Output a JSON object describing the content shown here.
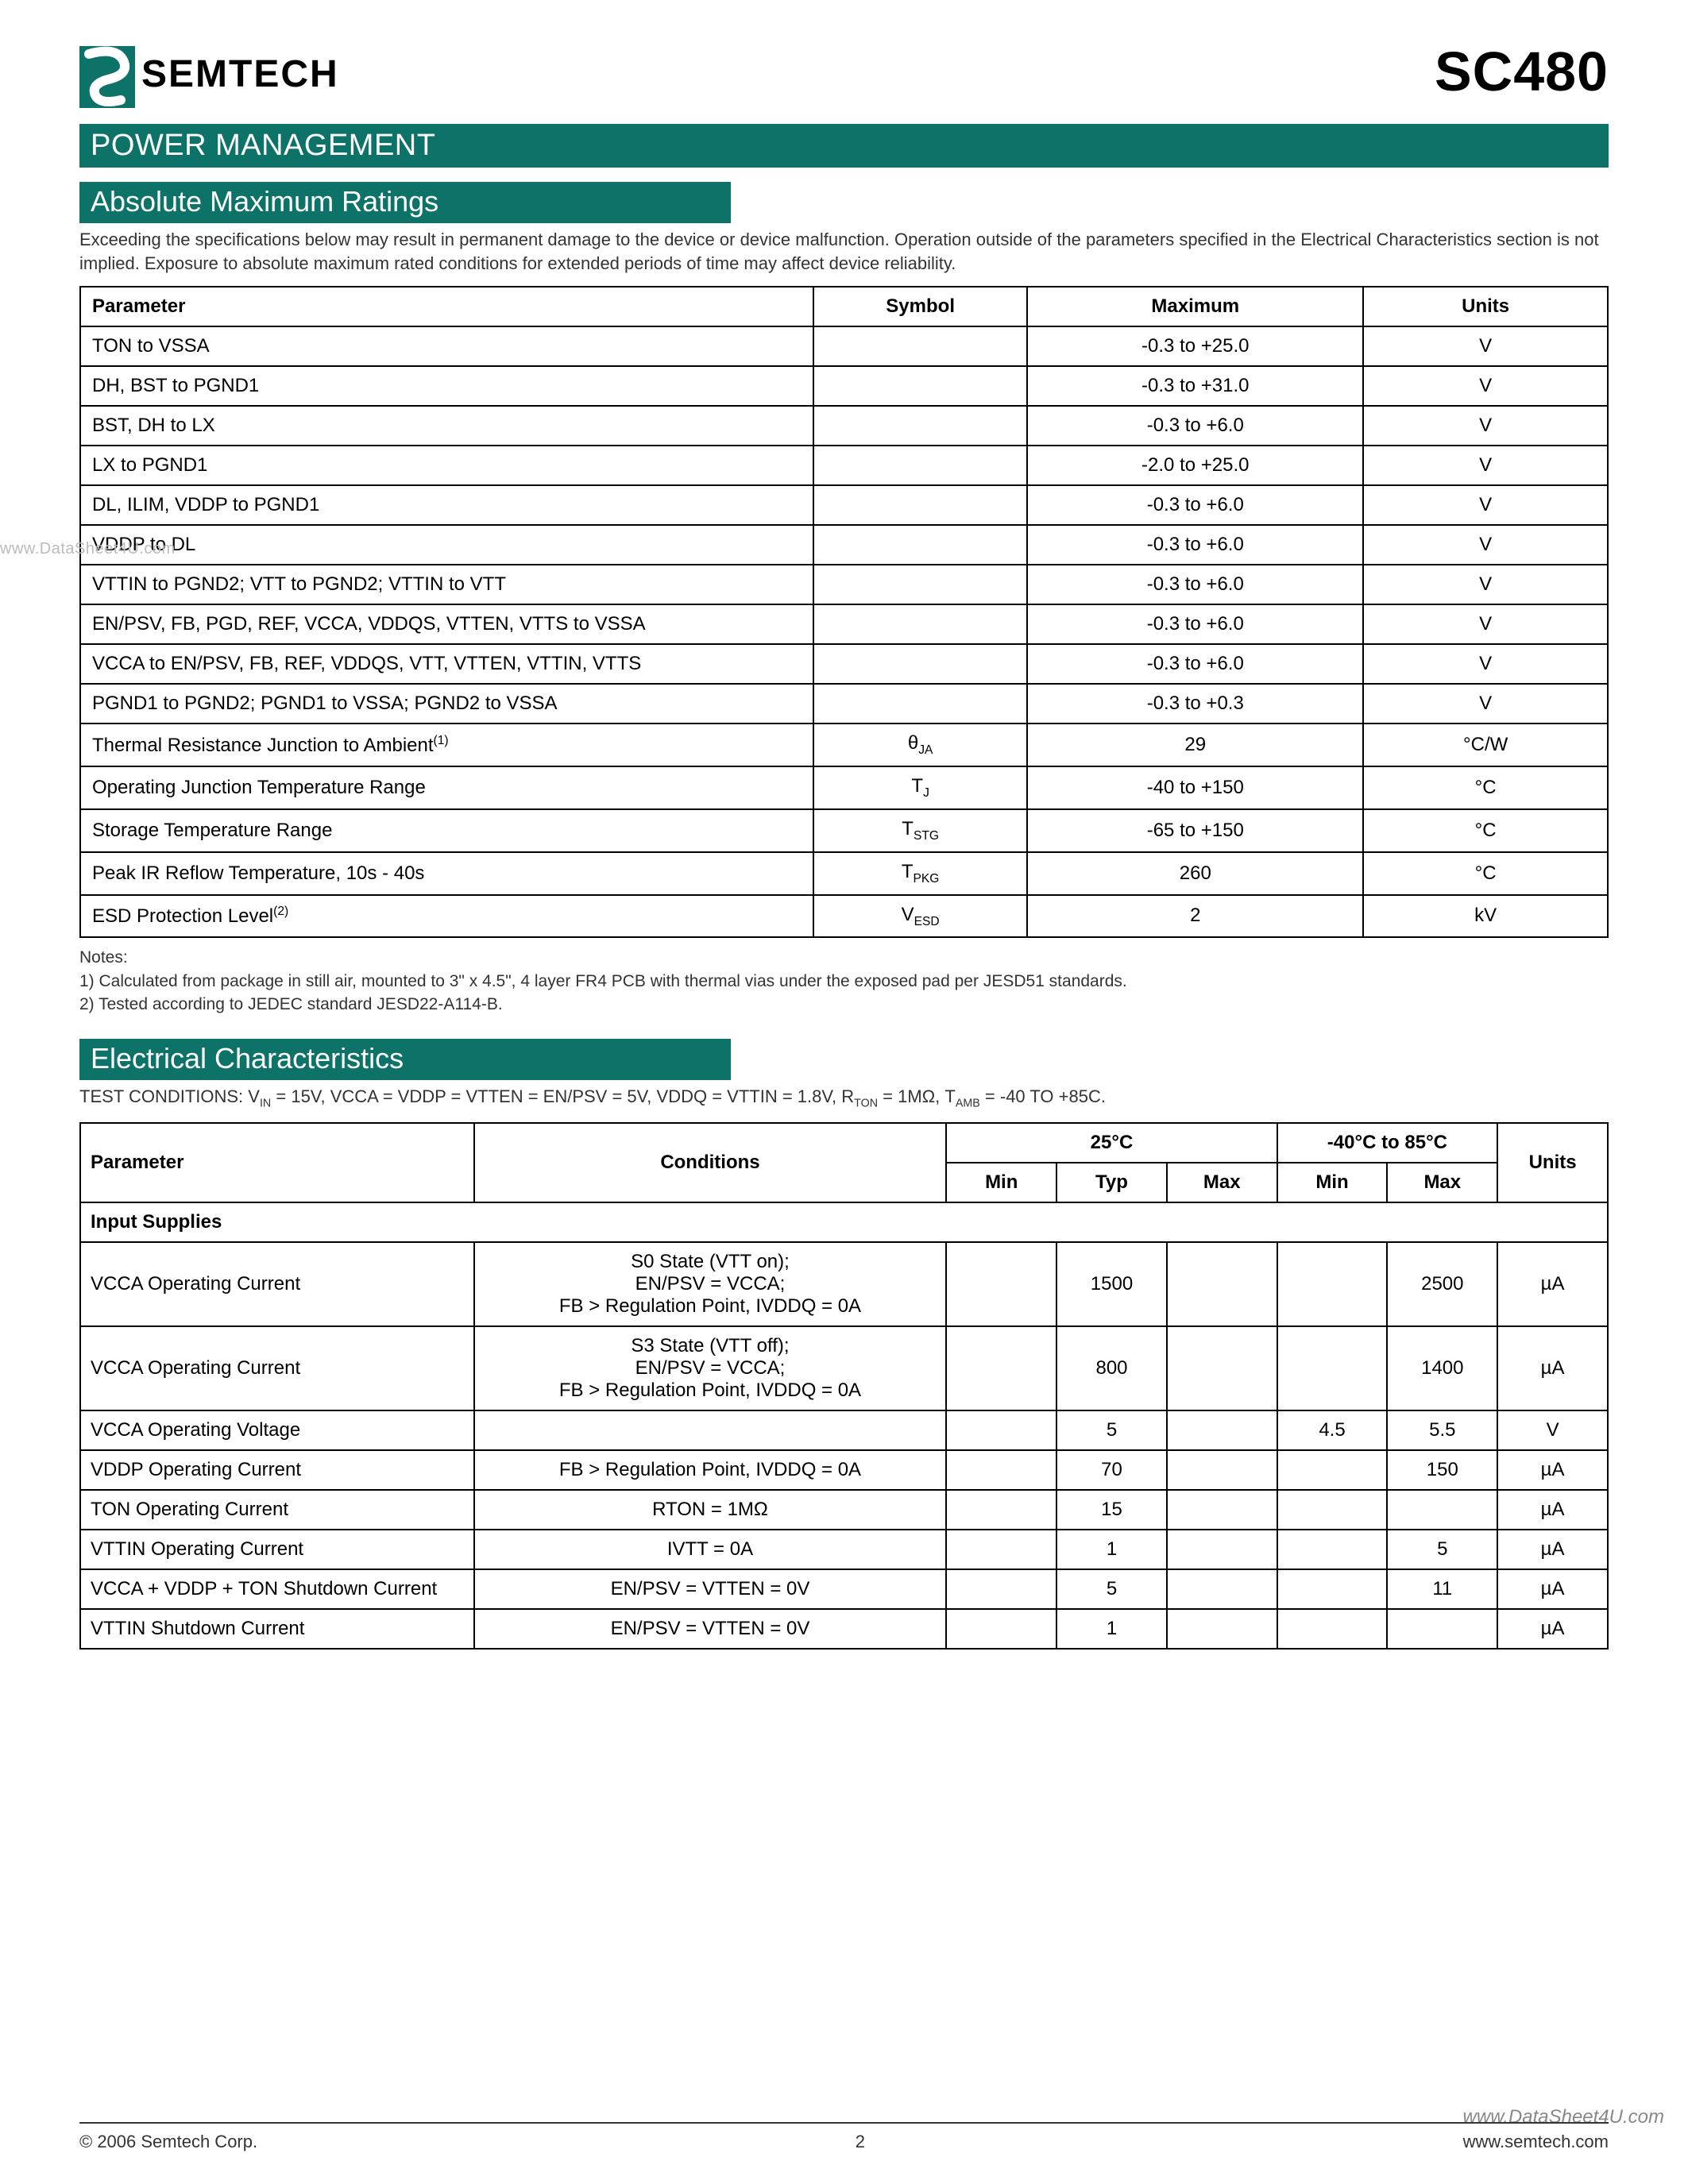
{
  "colors": {
    "brand_teal": "#0d7369",
    "text": "#000000",
    "muted": "#333333",
    "watermark": "#bbbbbb",
    "border": "#000000",
    "bg": "#ffffff"
  },
  "typography": {
    "body_fontsize": 24,
    "section_title_fontsize": 36,
    "banner_fontsize": 38,
    "part_fontsize": 70,
    "notes_fontsize": 21,
    "intro_fontsize": 22
  },
  "header": {
    "company": "SEMTECH",
    "part_number": "SC480"
  },
  "banner": "POWER MANAGEMENT",
  "amr": {
    "title": "Absolute Maximum Ratings",
    "intro": "Exceeding the specifications below may result in permanent damage to the device or device malfunction.  Operation outside of the parameters specified in the Electrical Characteristics section is not implied. Exposure to absolute maximum rated conditions for extended periods of time may affect device reliability.",
    "columns": [
      "Parameter",
      "Symbol",
      "Maximum",
      "Units"
    ],
    "rows": [
      {
        "param": "TON to VSSA",
        "symbol": "",
        "max": "-0.3 to +25.0",
        "units": "V"
      },
      {
        "param": "DH, BST to PGND1",
        "symbol": "",
        "max": "-0.3 to +31.0",
        "units": "V"
      },
      {
        "param": "BST, DH  to LX",
        "symbol": "",
        "max": "-0.3 to +6.0",
        "units": "V"
      },
      {
        "param": "LX to PGND1",
        "symbol": "",
        "max": "-2.0 to +25.0",
        "units": "V"
      },
      {
        "param": "DL, ILIM, VDDP to PGND1",
        "symbol": "",
        "max": "-0.3 to +6.0",
        "units": "V"
      },
      {
        "param": "VDDP to DL",
        "symbol": "",
        "max": "-0.3 to +6.0",
        "units": "V"
      },
      {
        "param": "VTTIN to PGND2; VTT to PGND2; VTTIN to VTT",
        "symbol": "",
        "max": "-0.3 to +6.0",
        "units": "V"
      },
      {
        "param": "EN/PSV, FB, PGD, REF, VCCA, VDDQS, VTTEN, VTTS to VSSA",
        "symbol": "",
        "max": "-0.3 to +6.0",
        "units": "V"
      },
      {
        "param": "VCCA to EN/PSV, FB, REF, VDDQS, VTT, VTTEN, VTTIN, VTTS",
        "symbol": "",
        "max": "-0.3 to +6.0",
        "units": "V"
      },
      {
        "param": "PGND1 to PGND2; PGND1 to VSSA; PGND2 to VSSA",
        "symbol": "",
        "max": "-0.3 to +0.3",
        "units": "V"
      },
      {
        "param": "Thermal Resistance Junction to Ambient",
        "param_sup": "(1)",
        "symbol_main": "θ",
        "symbol_sub": "JA",
        "max": "29",
        "units": "°C/W"
      },
      {
        "param": "Operating Junction Temperature Range",
        "symbol_main": "T",
        "symbol_sub": "J",
        "max": "-40 to +150",
        "units": "°C"
      },
      {
        "param": "Storage Temperature Range",
        "symbol_main": "T",
        "symbol_sub": "STG",
        "max": "-65 to +150",
        "units": "°C"
      },
      {
        "param": "Peak IR Reflow Temperature, 10s - 40s",
        "symbol_main": "T",
        "symbol_sub": "PKG",
        "max": "260",
        "units": "°C"
      },
      {
        "param": "ESD Protection Level",
        "param_sup": "(2)",
        "symbol_main": "V",
        "symbol_sub": "ESD",
        "max": "2",
        "units": "kV"
      }
    ],
    "notes_label": "Notes:",
    "note1": "1) Calculated from package in still air, mounted to 3\" x 4.5\", 4 layer FR4 PCB with thermal vias under the exposed pad per JESD51 standards.",
    "note2": "2) Tested according to JEDEC standard JESD22-A114-B."
  },
  "ec": {
    "title": "Electrical Characteristics",
    "test_conditions_prefix": "TEST CONDITIONS: V",
    "test_conditions_body": " = 15V,  VCCA = VDDP = VTTEN = EN/PSV = 5V, VDDQ = VTTIN = 1.8V,  R",
    "test_conditions_mid": " = 1MΩ,  T",
    "test_conditions_end": " = -40 TO +85C.",
    "header": {
      "parameter": "Parameter",
      "conditions": "Conditions",
      "t25": "25°C",
      "trange": "-40°C to 85°C",
      "units": "Units",
      "min": "Min",
      "typ": "Typ",
      "max": "Max"
    },
    "section1": "Input Supplies",
    "rows": [
      {
        "param": "VCCA Operating Current",
        "cond_lines": [
          "S0 State (VTT on);",
          "EN/PSV = VCCA;",
          "FB > Regulation Point, IVDDQ = 0A"
        ],
        "min25": "",
        "typ25": "1500",
        "max25": "",
        "minr": "",
        "maxr": "2500",
        "units": "µA"
      },
      {
        "param": "VCCA Operating Current",
        "cond_lines": [
          "S3 State (VTT off);",
          "EN/PSV = VCCA;",
          "FB > Regulation Point, IVDDQ = 0A"
        ],
        "min25": "",
        "typ25": "800",
        "max25": "",
        "minr": "",
        "maxr": "1400",
        "units": "µA"
      },
      {
        "param": "VCCA Operating Voltage",
        "cond_lines": [
          ""
        ],
        "min25": "",
        "typ25": "5",
        "max25": "",
        "minr": "4.5",
        "maxr": "5.5",
        "units": "V"
      },
      {
        "param": "VDDP Operating Current",
        "cond_lines": [
          "FB > Regulation Point, IVDDQ = 0A"
        ],
        "min25": "",
        "typ25": "70",
        "max25": "",
        "minr": "",
        "maxr": "150",
        "units": "µA"
      },
      {
        "param": "TON Operating Current",
        "cond_lines": [
          "RTON = 1MΩ"
        ],
        "min25": "",
        "typ25": "15",
        "max25": "",
        "minr": "",
        "maxr": "",
        "units": "µA"
      },
      {
        "param": "VTTIN Operating Current",
        "cond_lines": [
          "IVTT = 0A"
        ],
        "min25": "",
        "typ25": "1",
        "max25": "",
        "minr": "",
        "maxr": "5",
        "units": "µA"
      },
      {
        "param": "VCCA + VDDP + TON Shutdown Current",
        "cond_lines": [
          "EN/PSV = VTTEN = 0V"
        ],
        "min25": "",
        "typ25": "5",
        "max25": "",
        "minr": "",
        "maxr": "11",
        "units": "µA"
      },
      {
        "param": "VTTIN Shutdown Current",
        "cond_lines": [
          "EN/PSV = VTTEN = 0V"
        ],
        "min25": "",
        "typ25": "1",
        "max25": "",
        "minr": "",
        "maxr": "",
        "units": "µA"
      }
    ]
  },
  "footer": {
    "copyright": "© 2006 Semtech Corp.",
    "page": "2",
    "url": "www.semtech.com"
  },
  "watermark_left": "www.DataSheet4U.com",
  "watermark_right": "www.DataSheet4U.com"
}
